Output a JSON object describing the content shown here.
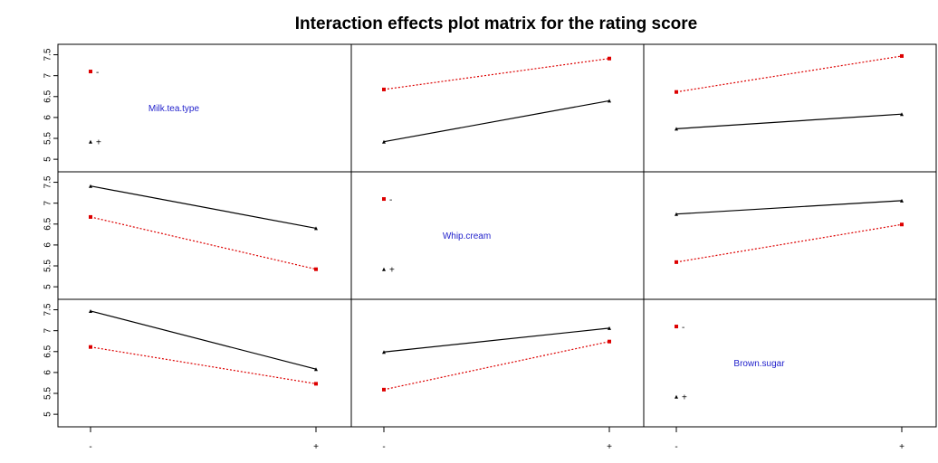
{
  "chart_data": {
    "type": "line",
    "title": "Interaction effects plot matrix for the rating score",
    "factors": [
      "Milk.tea.type",
      "Whip.cream",
      "Brown.sugar"
    ],
    "levels": [
      "-",
      "+"
    ],
    "ylim": [
      4.7,
      7.75
    ],
    "yticks": [
      "5",
      "5.5",
      "6",
      "6.5",
      "7",
      "7.5"
    ],
    "colors": {
      "minus": "#dd0000",
      "plus": "#000000"
    },
    "diagonal_legend": {
      "minus": {
        "label": "-",
        "y": 7.1
      },
      "plus": {
        "label": "+",
        "y": 5.42
      }
    },
    "panels": [
      {
        "row": 0,
        "col": 1,
        "series": [
          {
            "name": "-",
            "values": [
              6.67,
              7.41
            ]
          },
          {
            "name": "+",
            "values": [
              5.42,
              6.4
            ]
          }
        ]
      },
      {
        "row": 0,
        "col": 2,
        "series": [
          {
            "name": "-",
            "values": [
              6.61,
              7.47
            ]
          },
          {
            "name": "+",
            "values": [
              5.73,
              6.08
            ]
          }
        ]
      },
      {
        "row": 1,
        "col": 0,
        "series": [
          {
            "name": "-",
            "values": [
              6.67,
              5.42
            ]
          },
          {
            "name": "+",
            "values": [
              7.41,
              6.4
            ]
          }
        ]
      },
      {
        "row": 1,
        "col": 2,
        "series": [
          {
            "name": "-",
            "values": [
              5.59,
              6.49
            ]
          },
          {
            "name": "+",
            "values": [
              6.74,
              7.06
            ]
          }
        ]
      },
      {
        "row": 2,
        "col": 0,
        "series": [
          {
            "name": "-",
            "values": [
              6.61,
              5.73
            ]
          },
          {
            "name": "+",
            "values": [
              7.47,
              6.08
            ]
          }
        ]
      },
      {
        "row": 2,
        "col": 1,
        "series": [
          {
            "name": "-",
            "values": [
              5.59,
              6.74
            ]
          },
          {
            "name": "+",
            "values": [
              6.49,
              7.06
            ]
          }
        ]
      }
    ],
    "grid": false,
    "legend": "diagonal panels"
  }
}
